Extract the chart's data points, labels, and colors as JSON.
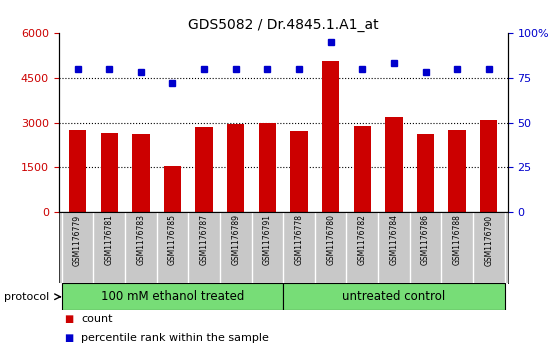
{
  "title": "GDS5082 / Dr.4845.1.A1_at",
  "samples": [
    "GSM1176779",
    "GSM1176781",
    "GSM1176783",
    "GSM1176785",
    "GSM1176787",
    "GSM1176789",
    "GSM1176791",
    "GSM1176778",
    "GSM1176780",
    "GSM1176782",
    "GSM1176784",
    "GSM1176786",
    "GSM1176788",
    "GSM1176790"
  ],
  "counts": [
    2750,
    2650,
    2600,
    1550,
    2850,
    2950,
    3000,
    2700,
    5050,
    2900,
    3200,
    2600,
    2750,
    3100
  ],
  "percentiles": [
    80,
    80,
    78,
    72,
    80,
    80,
    80,
    80,
    95,
    80,
    83,
    78,
    80,
    80
  ],
  "groups": [
    {
      "label": "100 mM ethanol treated",
      "start": 0,
      "end": 7,
      "color": "#77DD77"
    },
    {
      "label": "untreated control",
      "start": 7,
      "end": 14,
      "color": "#77DD77"
    }
  ],
  "bar_color": "#CC0000",
  "dot_color": "#0000CC",
  "left_ylim": [
    0,
    6000
  ],
  "right_ylim": [
    0,
    100
  ],
  "left_yticks": [
    0,
    1500,
    3000,
    4500,
    6000
  ],
  "right_yticks": [
    0,
    25,
    50,
    75,
    100
  ],
  "grid_values": [
    1500,
    3000,
    4500
  ],
  "tick_label_color_left": "#CC0000",
  "tick_label_color_right": "#0000CC",
  "protocol_label": "protocol",
  "legend_count_label": "count",
  "legend_pct_label": "percentile rank within the sample",
  "xlabel_area_color": "#C8C8C8",
  "group_label_fontsize": 8.5,
  "title_fontsize": 10,
  "sample_fontsize": 5.5,
  "bar_width": 0.55
}
